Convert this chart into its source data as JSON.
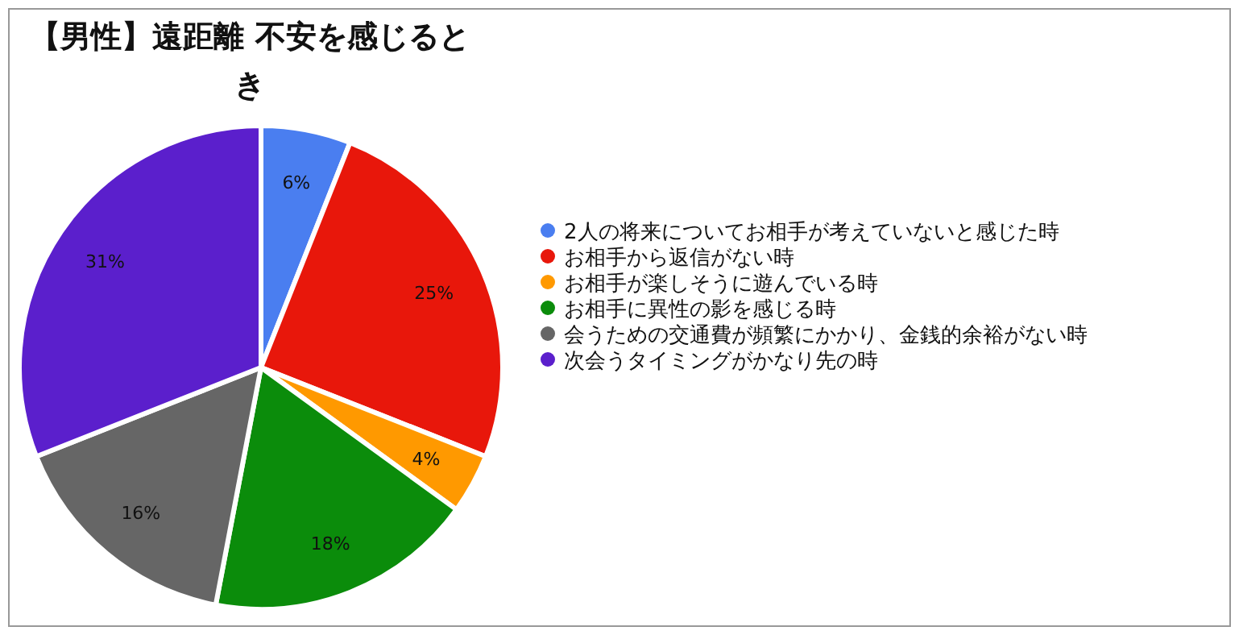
{
  "chart_data": {
    "type": "pie",
    "title": "【男性】遠距離 不安を感じるとき",
    "categories": [
      "2人の将来についてお相手が考えていないと感じた時",
      "お相手から返信がない時",
      "お相手が楽しそうに遊んでいる時",
      "お相手に異性の影を感じる時",
      "会うための交通費が頻繁にかかり、金銭的余裕がない時",
      "次会うタイミングがかなり先の時"
    ],
    "values": [
      6,
      25,
      4,
      18,
      16,
      31
    ],
    "colors": [
      "#4a7ef0",
      "#e8170b",
      "#ff9900",
      "#0b8c0b",
      "#666666",
      "#5b1fcc"
    ],
    "value_labels": [
      "6%",
      "25%",
      "4%",
      "18%",
      "16%",
      "31%"
    ],
    "legend": "right"
  }
}
